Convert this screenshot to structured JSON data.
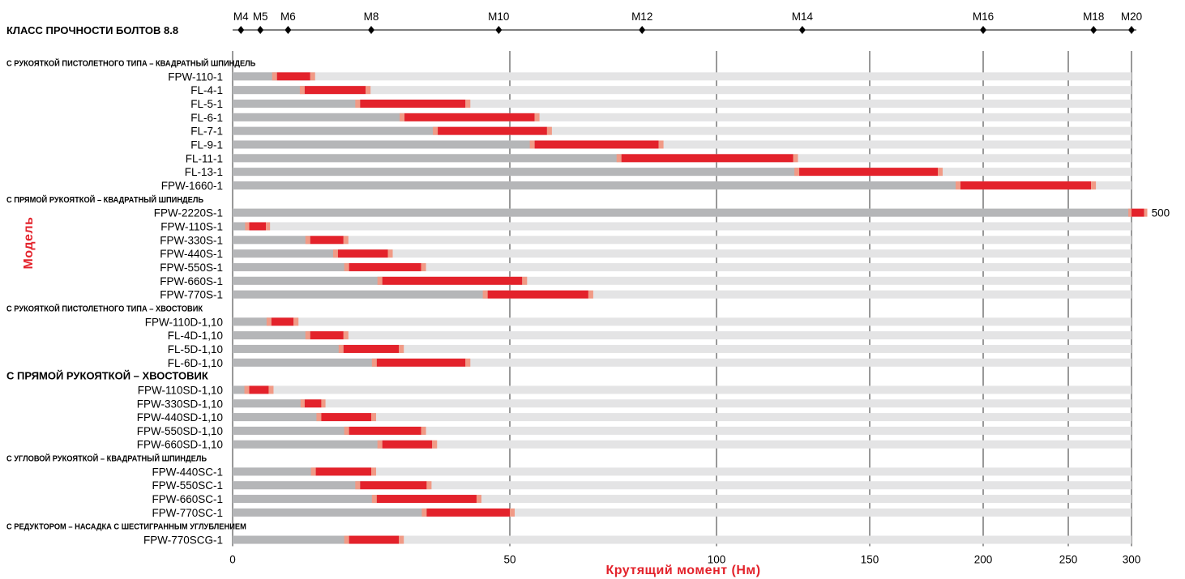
{
  "chart_data": {
    "type": "bar",
    "title": "КЛАСС ПРОЧНОСТИ БОЛТОВ 8.8",
    "xlabel": "Крутящий момент (Нм)",
    "ylabel": "Модель",
    "x_ticks": [
      {
        "label": "0",
        "value": 0
      },
      {
        "label": "50",
        "value": 50
      },
      {
        "label": "100",
        "value": 100
      },
      {
        "label": "150",
        "value": 150
      },
      {
        "label": "200",
        "value": 200
      },
      {
        "label": "250",
        "value": 250
      },
      {
        "label": "300",
        "value": 300
      }
    ],
    "bolt_sizes": [
      {
        "label": "M4",
        "value": 1.5
      },
      {
        "label": "M5",
        "value": 5
      },
      {
        "label": "M6",
        "value": 10
      },
      {
        "label": "M8",
        "value": 25
      },
      {
        "label": "M10",
        "value": 48
      },
      {
        "label": "M12",
        "value": 82
      },
      {
        "label": "M14",
        "value": 128
      },
      {
        "label": "M16",
        "value": 200
      },
      {
        "label": "M18",
        "value": 270
      },
      {
        "label": "M20",
        "value": 300
      }
    ],
    "rows": [
      {
        "kind": "category",
        "label": "С РУКОЯТКОЙ ПИСТОЛЕТНОГО ТИПА – КВАДРАТНЫЙ ШПИНДЕЛЬ",
        "small": true
      },
      {
        "kind": "bar",
        "label": "FPW-110-1",
        "min": 8,
        "max": 14
      },
      {
        "kind": "bar",
        "label": "FL-4-1",
        "min": 13,
        "max": 24
      },
      {
        "kind": "bar",
        "label": "FL-5-1",
        "min": 23,
        "max": 42
      },
      {
        "kind": "bar",
        "label": "FL-6-1",
        "min": 31,
        "max": 56
      },
      {
        "kind": "bar",
        "label": "FL-7-1",
        "min": 37,
        "max": 59
      },
      {
        "kind": "bar",
        "label": "FL-9-1",
        "min": 56,
        "max": 86
      },
      {
        "kind": "bar",
        "label": "FL-11-1",
        "min": 77,
        "max": 125
      },
      {
        "kind": "bar",
        "label": "FL-13-1",
        "min": 127,
        "max": 180
      },
      {
        "kind": "bar",
        "label": "FPW-1660-1",
        "min": 190,
        "max": 268
      },
      {
        "kind": "category",
        "label": "С ПРЯМОЙ РУКОЯТКОЙ – КВАДРАТНЫЙ ШПИНДЕЛЬ",
        "small": true
      },
      {
        "kind": "bar",
        "label": "FPW-2220S-1",
        "min": 300,
        "max": 310,
        "value_label": "500"
      },
      {
        "kind": "bar",
        "label": "FPW-110S-1",
        "min": 3,
        "max": 6
      },
      {
        "kind": "bar",
        "label": "FPW-330S-1",
        "min": 14,
        "max": 20
      },
      {
        "kind": "bar",
        "label": "FPW-440S-1",
        "min": 19,
        "max": 28
      },
      {
        "kind": "bar",
        "label": "FPW-550S-1",
        "min": 21,
        "max": 34
      },
      {
        "kind": "bar",
        "label": "FPW-660S-1",
        "min": 27,
        "max": 53
      },
      {
        "kind": "bar",
        "label": "FPW-770S-1",
        "min": 46,
        "max": 69
      },
      {
        "kind": "category",
        "label": "С РУКОЯТКОЙ ПИСТОЛЕТНОГО ТИПА – ХВОСТОВИК",
        "small": true
      },
      {
        "kind": "bar",
        "label": "FPW-110D-1,10",
        "min": 7,
        "max": 11
      },
      {
        "kind": "bar",
        "label": "FL-4D-1,10",
        "min": 14,
        "max": 20
      },
      {
        "kind": "bar",
        "label": "FL-5D-1,10",
        "min": 20,
        "max": 30
      },
      {
        "kind": "bar",
        "label": "FL-6D-1,10",
        "min": 26,
        "max": 42
      },
      {
        "kind": "category",
        "label": "С ПРЯМОЙ РУКОЯТКОЙ – ХВОСТОВИК",
        "small": false
      },
      {
        "kind": "bar",
        "label": "FPW-110SD-1,10",
        "min": 3,
        "max": 6.5
      },
      {
        "kind": "bar",
        "label": "FPW-330SD-1,10",
        "min": 13,
        "max": 16
      },
      {
        "kind": "bar",
        "label": "FPW-440SD-1,10",
        "min": 16,
        "max": 25
      },
      {
        "kind": "bar",
        "label": "FPW-550SD-1,10",
        "min": 21,
        "max": 34
      },
      {
        "kind": "bar",
        "label": "FPW-660SD-1,10",
        "min": 27,
        "max": 36
      },
      {
        "kind": "category",
        "label": "С УГЛОВОЙ РУКОЯТКОЙ – КВАДРАТНЫЙ ШПИНДЕЛЬ",
        "small": true
      },
      {
        "kind": "bar",
        "label": "FPW-440SC-1",
        "min": 15,
        "max": 25
      },
      {
        "kind": "bar",
        "label": "FPW-550SC-1",
        "min": 23,
        "max": 35
      },
      {
        "kind": "bar",
        "label": "FPW-660SC-1",
        "min": 26,
        "max": 44
      },
      {
        "kind": "bar",
        "label": "FPW-770SC-1",
        "min": 35,
        "max": 50
      },
      {
        "kind": "category",
        "label": "С РЕДУКТОРОМ – НАСАДКА С ШЕСТИГРАННЫМ УГЛУБЛЕНИЕМ",
        "small": true
      },
      {
        "kind": "bar",
        "label": "FPW-770SCG-1",
        "min": 21,
        "max": 30
      }
    ],
    "colors": {
      "track": "#e4e4e5",
      "gray": "#b5b6b8",
      "red": "#e3222b",
      "fade": "#f19a86",
      "axis_title": "#e3222b"
    }
  }
}
